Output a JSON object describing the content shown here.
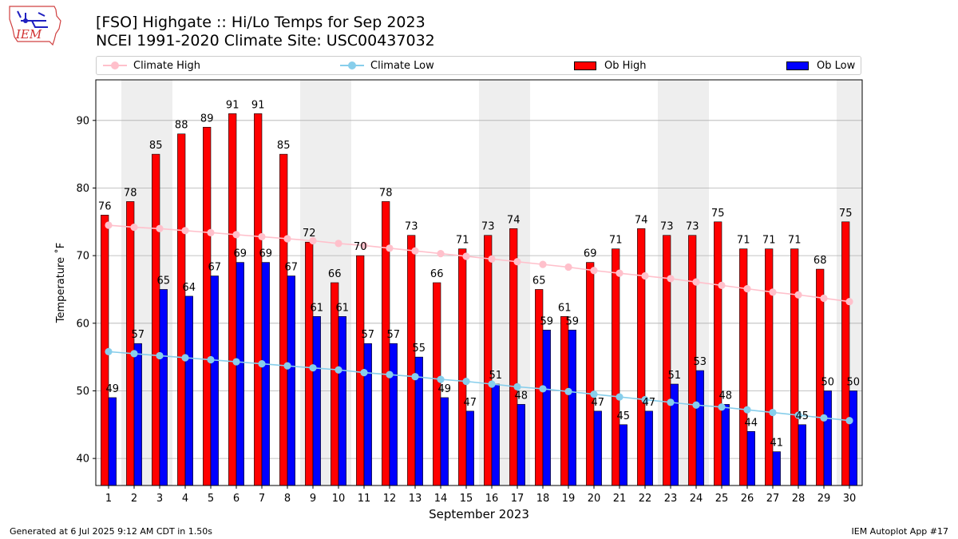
{
  "header": {
    "title_line1": "[FSO] Highgate :: Hi/Lo Temps for Sep 2023",
    "title_line2": "NCEI 1991-2020 Climate Site: USC00437032",
    "logo_text": "IEM"
  },
  "footer": {
    "generated": "Generated at 6 Jul 2025 9:12 AM CDT in 1.50s",
    "app": "IEM Autoplot App #17"
  },
  "colors": {
    "ob_high": "#ff0000",
    "ob_low": "#0000ff",
    "climate_high": "#ffc0cb",
    "climate_low": "#87ceeb",
    "weekend_shade": "#eeeeee",
    "grid": "#b0b0b0"
  },
  "chart_data": {
    "type": "bar",
    "title": "[FSO] Highgate :: Hi/Lo Temps for Sep 2023",
    "subtitle": "NCEI 1991-2020 Climate Site: USC00437032",
    "xlabel": "September 2023",
    "ylabel": "Temperature ˚F",
    "ylim": [
      36,
      96
    ],
    "yticks": [
      40,
      50,
      60,
      70,
      80,
      90
    ],
    "grid": "y",
    "legend_position": "top",
    "categories": [
      1,
      2,
      3,
      4,
      5,
      6,
      7,
      8,
      9,
      10,
      11,
      12,
      13,
      14,
      15,
      16,
      17,
      18,
      19,
      20,
      21,
      22,
      23,
      24,
      25,
      26,
      27,
      28,
      29,
      30
    ],
    "shaded_days": [
      2,
      3,
      9,
      10,
      16,
      17,
      23,
      24,
      30
    ],
    "series": [
      {
        "name": "Ob High",
        "kind": "bar",
        "color": "#ff0000",
        "values": [
          76,
          78,
          85,
          88,
          89,
          91,
          91,
          85,
          72,
          66,
          70,
          78,
          73,
          66,
          71,
          73,
          74,
          65,
          61,
          69,
          71,
          74,
          73,
          73,
          75,
          71,
          71,
          71,
          68,
          75
        ]
      },
      {
        "name": "Ob Low",
        "kind": "bar",
        "color": "#0000ff",
        "values": [
          49,
          57,
          65,
          64,
          67,
          69,
          69,
          67,
          61,
          61,
          57,
          57,
          55,
          49,
          47,
          51,
          48,
          59,
          59,
          47,
          45,
          47,
          51,
          53,
          48,
          44,
          41,
          45,
          50,
          50
        ]
      },
      {
        "name": "Climate High",
        "kind": "line",
        "color": "#ffc0cb",
        "values": [
          74.5,
          74.2,
          74.0,
          73.7,
          73.4,
          73.1,
          72.8,
          72.5,
          72.2,
          71.8,
          71.5,
          71.1,
          70.7,
          70.3,
          69.9,
          69.5,
          69.1,
          68.7,
          68.3,
          67.8,
          67.4,
          67.0,
          66.6,
          66.1,
          65.6,
          65.1,
          64.6,
          64.2,
          63.7,
          63.2
        ]
      },
      {
        "name": "Climate Low",
        "kind": "line",
        "color": "#87ceeb",
        "values": [
          55.8,
          55.5,
          55.2,
          54.9,
          54.6,
          54.3,
          54.0,
          53.7,
          53.4,
          53.1,
          52.7,
          52.4,
          52.1,
          51.7,
          51.4,
          51.0,
          50.6,
          50.3,
          49.9,
          49.5,
          49.1,
          48.7,
          48.3,
          47.9,
          47.6,
          47.2,
          46.8,
          46.4,
          46.0,
          45.6
        ]
      }
    ]
  }
}
